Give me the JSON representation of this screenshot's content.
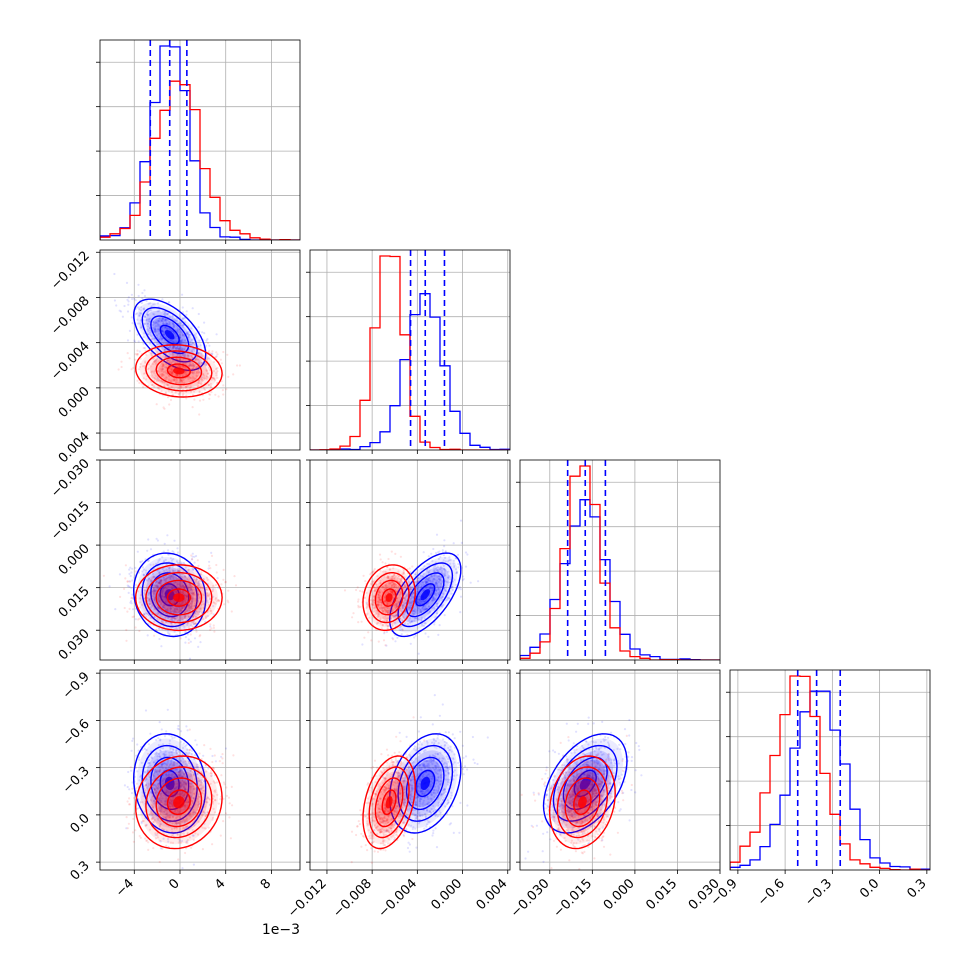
{
  "chart_data": {
    "type": "corner",
    "grid": true,
    "x_offset_label": "1e−3",
    "colors": {
      "blue": "#0000ff",
      "red": "#ff0000"
    },
    "series": [
      {
        "color": "#0000ff",
        "medians": [
          -0.0009,
          -0.0033,
          -0.0175,
          -0.4
        ],
        "quantile_lines": [
          [
            -0.0026,
            -0.0009,
            0.0006
          ],
          [
            -0.0046,
            -0.0033,
            -0.0016
          ],
          [
            -0.0237,
            -0.0175,
            -0.0104
          ],
          [
            -0.52,
            -0.4,
            -0.25
          ]
        ],
        "sigma": [
          0.0015,
          0.0015,
          0.007,
          0.15
        ],
        "corr_to_param0": [
          null,
          -0.55,
          -0.1,
          -0.1
        ],
        "corr_23": 0.45,
        "corr_13": 0.3,
        "corr_12": 0.6
      },
      {
        "color": "#ff0000",
        "medians": [
          -0.0001,
          -0.0065,
          -0.0185,
          -0.52
        ],
        "sigma": [
          0.0018,
          0.0011,
          0.0055,
          0.14
        ],
        "corr_to_param0": [
          null,
          -0.1,
          0.0,
          0.1
        ],
        "corr_23": 0.2,
        "corr_13": 0.35,
        "corr_12": 0.15
      }
    ],
    "params": [
      {
        "range": [
          -0.007,
          0.0105
        ],
        "ticks": [
          -4,
          0,
          4,
          8
        ],
        "tick_values": [
          -0.004,
          0.0,
          0.004,
          0.008
        ]
      },
      {
        "range": [
          -0.0135,
          0.0042
        ],
        "ticks": [
          "−0.012",
          "−0.008",
          "−0.004",
          "0.000",
          "0.004"
        ],
        "tick_values": [
          -0.012,
          -0.008,
          -0.004,
          0.0,
          0.004
        ]
      },
      {
        "range": [
          -0.0405,
          0.03
        ],
        "ticks": [
          "−0.030",
          "−0.015",
          "0.000",
          "0.015",
          "0.030"
        ],
        "tick_values": [
          -0.03,
          -0.015,
          0.0,
          0.015,
          0.03
        ]
      },
      {
        "range": [
          -0.95,
          0.32
        ],
        "ticks": [
          "−0.9",
          "−0.6",
          "−0.3",
          "0.0",
          "0.3"
        ],
        "tick_values": [
          -0.9,
          -0.6,
          -0.3,
          0.0,
          0.3
        ]
      }
    ],
    "x_tick_labels": [
      [
        "−4",
        "0",
        "4",
        "8"
      ],
      [
        "−0.012",
        "−0.008",
        "−0.004",
        "0.000",
        "0.004"
      ],
      [
        "−0.030",
        "−0.015",
        "0.000",
        "0.015",
        "0.030"
      ],
      [
        "−0.9",
        "−0.6",
        "−0.3",
        "0.0",
        "0.3"
      ]
    ],
    "y_tick_labels": [
      null,
      [
        "0.004",
        "0.000",
        "−0.004",
        "−0.008",
        "−0.012"
      ],
      [
        "0.030",
        "0.015",
        "0.000",
        "−0.015",
        "−0.030"
      ],
      [
        "0.3",
        "0.0",
        "−0.3",
        "−0.6",
        "−0.9"
      ]
    ]
  }
}
